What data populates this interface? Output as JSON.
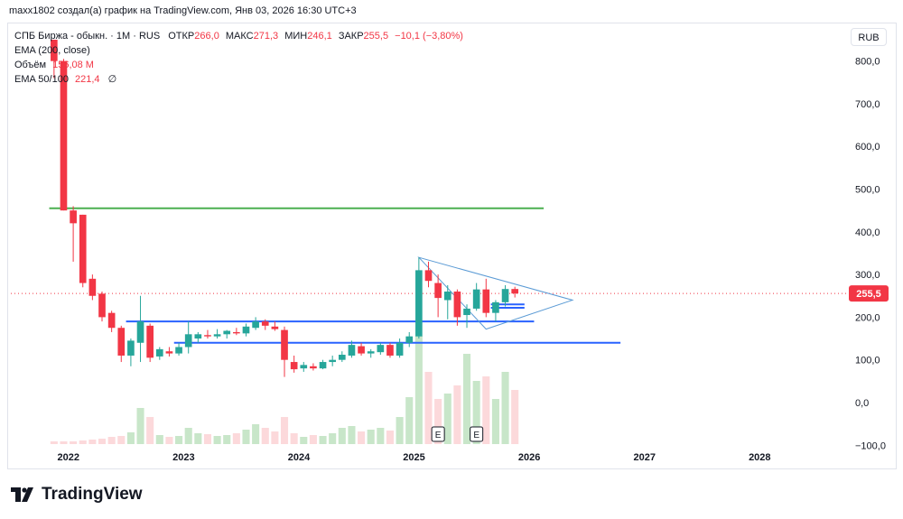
{
  "header": {
    "created_by": "maxx1802 создал(а) график на TradingView.com, Янв 03, 2026 16:30 UTC+3"
  },
  "legend": {
    "symbol": "СПБ Биржа - обыкн. · 1М · RUS",
    "open_label": "ОТКР",
    "open_value": "266,0",
    "high_label": "МАКС",
    "high_value": "271,3",
    "low_label": "МИН",
    "low_value": "246,1",
    "close_label": "ЗАКР",
    "close_value": "255,5",
    "change_value": "−10,1 (−3,80%)",
    "ema200_label": "EMA (200, close)",
    "volume_label": "Объём",
    "volume_value": "156,08 M",
    "ema50_label": "EMA 50/100",
    "ema50_value": "221,4",
    "ema50_extra": "∅"
  },
  "currency_button": "RUB",
  "price_badge": "255,5",
  "brand": "TradingView",
  "chart_data": {
    "type": "candlestick",
    "y_axis": {
      "range": [
        -110,
        850
      ],
      "ticks": [
        -100,
        0,
        100,
        200,
        300,
        400,
        500,
        600,
        700,
        800
      ],
      "tick_labels": [
        "−100,0",
        "0,0",
        "100,0",
        "200,0",
        "300,0",
        "400,0",
        "500,0",
        "600,0",
        "700,0",
        "800,0"
      ]
    },
    "x_axis": {
      "range": [
        "2021-07",
        "2028-10"
      ],
      "ticks": [
        "2022",
        "2023",
        "2024",
        "2025",
        "2026",
        "2027",
        "2028"
      ]
    },
    "colors": {
      "up": "#26a69a",
      "down": "#f23645",
      "up_volume": "#c8e6c9",
      "down_volume": "#fcd9db",
      "hline_green": "#4caf50",
      "hline_blue": "#2962ff",
      "triangle": "#5b9bd5",
      "price_line": "#f23645"
    },
    "candles": [
      {
        "t": "2021-11",
        "o": 850,
        "h": 850,
        "l": 760,
        "c": 800
      },
      {
        "t": "2021-12",
        "o": 800,
        "h": 805,
        "l": 450,
        "c": 450
      },
      {
        "t": "2022-01",
        "o": 450,
        "h": 460,
        "l": 330,
        "c": 420
      },
      {
        "t": "2022-02",
        "o": 440,
        "h": 440,
        "l": 270,
        "c": 280
      },
      {
        "t": "2022-03",
        "o": 290,
        "h": 300,
        "l": 240,
        "c": 250
      },
      {
        "t": "2022-04",
        "o": 255,
        "h": 260,
        "l": 190,
        "c": 200
      },
      {
        "t": "2022-05",
        "o": 210,
        "h": 215,
        "l": 165,
        "c": 175
      },
      {
        "t": "2022-06",
        "o": 175,
        "h": 180,
        "l": 95,
        "c": 110
      },
      {
        "t": "2022-07",
        "o": 110,
        "h": 150,
        "l": 85,
        "c": 145
      },
      {
        "t": "2022-08",
        "o": 140,
        "h": 250,
        "l": 95,
        "c": 190
      },
      {
        "t": "2022-09",
        "o": 180,
        "h": 185,
        "l": 95,
        "c": 105
      },
      {
        "t": "2022-10",
        "o": 108,
        "h": 130,
        "l": 100,
        "c": 125
      },
      {
        "t": "2022-11",
        "o": 120,
        "h": 130,
        "l": 108,
        "c": 115
      },
      {
        "t": "2022-12",
        "o": 115,
        "h": 140,
        "l": 110,
        "c": 130
      },
      {
        "t": "2023-01",
        "o": 130,
        "h": 190,
        "l": 115,
        "c": 160
      },
      {
        "t": "2023-02",
        "o": 150,
        "h": 165,
        "l": 140,
        "c": 160
      },
      {
        "t": "2023-03",
        "o": 158,
        "h": 170,
        "l": 150,
        "c": 155
      },
      {
        "t": "2023-04",
        "o": 155,
        "h": 172,
        "l": 150,
        "c": 160
      },
      {
        "t": "2023-05",
        "o": 160,
        "h": 170,
        "l": 150,
        "c": 168
      },
      {
        "t": "2023-06",
        "o": 165,
        "h": 175,
        "l": 158,
        "c": 162
      },
      {
        "t": "2023-07",
        "o": 162,
        "h": 185,
        "l": 155,
        "c": 178
      },
      {
        "t": "2023-08",
        "o": 175,
        "h": 200,
        "l": 170,
        "c": 190
      },
      {
        "t": "2023-09",
        "o": 190,
        "h": 195,
        "l": 170,
        "c": 180
      },
      {
        "t": "2023-10",
        "o": 178,
        "h": 190,
        "l": 168,
        "c": 172
      },
      {
        "t": "2023-11",
        "o": 170,
        "h": 178,
        "l": 60,
        "c": 100
      },
      {
        "t": "2023-12",
        "o": 95,
        "h": 110,
        "l": 70,
        "c": 78
      },
      {
        "t": "2024-01",
        "o": 80,
        "h": 95,
        "l": 72,
        "c": 88
      },
      {
        "t": "2024-02",
        "o": 85,
        "h": 92,
        "l": 75,
        "c": 80
      },
      {
        "t": "2024-03",
        "o": 80,
        "h": 100,
        "l": 78,
        "c": 95
      },
      {
        "t": "2024-04",
        "o": 95,
        "h": 110,
        "l": 85,
        "c": 100
      },
      {
        "t": "2024-05",
        "o": 100,
        "h": 120,
        "l": 95,
        "c": 112
      },
      {
        "t": "2024-06",
        "o": 110,
        "h": 145,
        "l": 105,
        "c": 135
      },
      {
        "t": "2024-07",
        "o": 132,
        "h": 140,
        "l": 110,
        "c": 115
      },
      {
        "t": "2024-08",
        "o": 115,
        "h": 125,
        "l": 105,
        "c": 120
      },
      {
        "t": "2024-09",
        "o": 118,
        "h": 140,
        "l": 112,
        "c": 135
      },
      {
        "t": "2024-10",
        "o": 135,
        "h": 140,
        "l": 105,
        "c": 110
      },
      {
        "t": "2024-11",
        "o": 110,
        "h": 150,
        "l": 105,
        "c": 140
      },
      {
        "t": "2024-12",
        "o": 140,
        "h": 165,
        "l": 130,
        "c": 155
      },
      {
        "t": "2025-01",
        "o": 155,
        "h": 340,
        "l": 150,
        "c": 310
      },
      {
        "t": "2025-02",
        "o": 310,
        "h": 330,
        "l": 270,
        "c": 285
      },
      {
        "t": "2025-03",
        "o": 280,
        "h": 300,
        "l": 200,
        "c": 245
      },
      {
        "t": "2025-04",
        "o": 240,
        "h": 275,
        "l": 195,
        "c": 260
      },
      {
        "t": "2025-05",
        "o": 260,
        "h": 265,
        "l": 180,
        "c": 200
      },
      {
        "t": "2025-06",
        "o": 205,
        "h": 230,
        "l": 175,
        "c": 220
      },
      {
        "t": "2025-07",
        "o": 220,
        "h": 280,
        "l": 215,
        "c": 265
      },
      {
        "t": "2025-08",
        "o": 265,
        "h": 290,
        "l": 200,
        "c": 210
      },
      {
        "t": "2025-09",
        "o": 210,
        "h": 240,
        "l": 190,
        "c": 235
      },
      {
        "t": "2025-10",
        "o": 235,
        "h": 275,
        "l": 225,
        "c": 266
      },
      {
        "t": "2025-11",
        "o": 266,
        "h": 271.3,
        "l": 246.1,
        "c": 255.5
      }
    ],
    "volume_scale_max": 110,
    "volumes": [
      3,
      3,
      3,
      4,
      5,
      6,
      8,
      9,
      13,
      40,
      30,
      10,
      8,
      9,
      18,
      12,
      11,
      9,
      10,
      12,
      16,
      22,
      18,
      14,
      30,
      12,
      8,
      10,
      9,
      12,
      18,
      20,
      14,
      16,
      18,
      15,
      30,
      52,
      120,
      80,
      50,
      56,
      65,
      100,
      70,
      75,
      50,
      80,
      60
    ],
    "lines": [
      {
        "kind": "hline",
        "color": "green",
        "y": 455,
        "from": "2021-11",
        "to": "2026-02"
      },
      {
        "kind": "hline",
        "color": "blue",
        "y": 190,
        "from": "2022-07",
        "to": "2026-01"
      },
      {
        "kind": "hline",
        "color": "blue",
        "y": 140,
        "from": "2022-12",
        "to": "2026-10"
      },
      {
        "kind": "hline",
        "color": "blue",
        "y": 230,
        "from": "2025-09",
        "to": "2025-12"
      },
      {
        "kind": "hline",
        "color": "blue",
        "y": 222,
        "from": "2025-09",
        "to": "2025-12"
      }
    ],
    "triangle": {
      "points": [
        [
          "2025-01",
          340
        ],
        [
          "2025-08",
          172
        ],
        [
          "2026-05",
          240
        ]
      ]
    },
    "event_markers": [
      {
        "t": "2025-03",
        "label": "E"
      },
      {
        "t": "2025-07",
        "label": "E"
      }
    ],
    "current_price": 255.5
  }
}
